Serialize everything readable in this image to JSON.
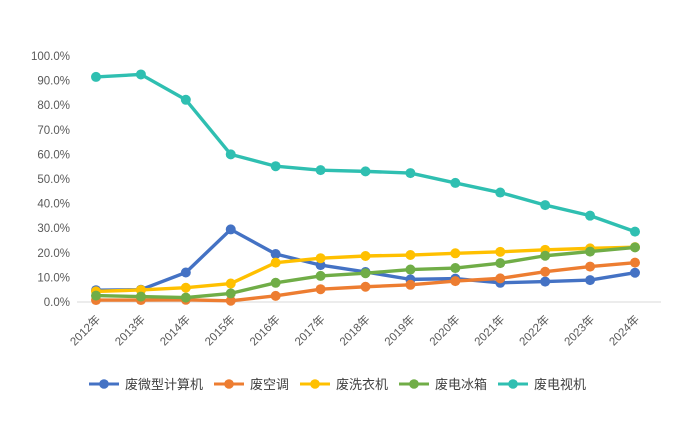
{
  "chart_data": {
    "type": "line",
    "title": "",
    "xlabel": "",
    "ylabel": "",
    "categories": [
      "2012年",
      "2013年",
      "2014年",
      "2015年",
      "2016年",
      "2017年",
      "2018年",
      "2019年",
      "2020年",
      "2021年",
      "2022年",
      "2023年",
      "2024年"
    ],
    "series": [
      {
        "name": "废微型计算机",
        "color": "#4472C4",
        "values": [
          4.8,
          5.0,
          12.0,
          29.5,
          19.5,
          15.0,
          12.2,
          9.2,
          9.5,
          7.8,
          8.3,
          8.9,
          11.9
        ]
      },
      {
        "name": "废空调",
        "color": "#ED7D31",
        "values": [
          0.8,
          0.8,
          0.9,
          0.5,
          2.5,
          5.2,
          6.2,
          7.0,
          8.5,
          9.6,
          12.3,
          14.4,
          16.0
        ]
      },
      {
        "name": "废洗衣机",
        "color": "#FFC000",
        "values": [
          4.3,
          4.9,
          5.8,
          7.5,
          16.0,
          17.8,
          18.7,
          19.1,
          19.8,
          20.4,
          21.2,
          21.8,
          22.3
        ]
      },
      {
        "name": "废电冰箱",
        "color": "#70AD47",
        "values": [
          2.6,
          2.2,
          1.8,
          3.5,
          7.8,
          10.6,
          11.7,
          13.2,
          13.8,
          15.8,
          18.8,
          20.5,
          22.2
        ]
      },
      {
        "name": "废电视机",
        "color": "#2FBFB1",
        "values": [
          91.5,
          92.5,
          82.2,
          60.0,
          55.2,
          53.6,
          53.1,
          52.4,
          48.4,
          44.5,
          39.4,
          35.1,
          28.6
        ]
      }
    ],
    "y_axis": {
      "min": 0,
      "max": 100,
      "step": 10,
      "tick_labels_top_to_bottom": [
        "100.0%",
        "90.0%",
        "80.0%",
        "70.0%",
        "60.0%",
        "50.0%",
        "40.0%",
        "30.0%",
        "20.0%",
        "10.0%",
        "0.0%"
      ]
    },
    "grid": false,
    "legend_position": "bottom",
    "marker": "circle"
  },
  "colors": {
    "background": "#FFFFFF",
    "axis_line": "#D9D9D9",
    "tick_text": "#595959",
    "legend_text": "#404040"
  }
}
